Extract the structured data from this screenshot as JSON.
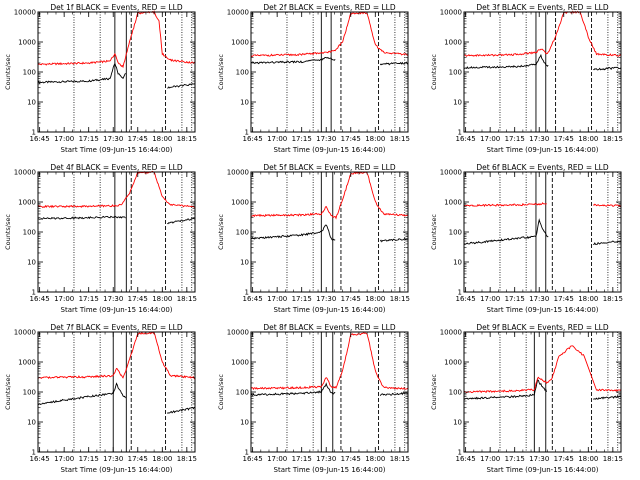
{
  "chart_data": [
    {
      "type": "line",
      "title": "Det 1f BLACK = Events, RED = LLD",
      "xlabel": "Start Time (09-Jun-15 16:44:00)",
      "ylabel": "Counts/sec",
      "scale_y": "log",
      "ylim": [
        1,
        10000
      ],
      "x_ticks": [
        "16:45",
        "17:00",
        "17:15",
        "17:30",
        "17:45",
        "18:00",
        "18:15"
      ],
      "y_ticks": [
        "1",
        "10",
        "100",
        "1000",
        "10000"
      ],
      "vlines": {
        "solid": [
          "17:31",
          "17:38"
        ],
        "dashed": [
          "17:41",
          "18:02"
        ],
        "dotted": [
          "17:06",
          "17:22",
          "18:12",
          "18:18"
        ]
      },
      "series": [
        {
          "color": "#000000",
          "x": [
            "16:44",
            "17:15",
            "17:28",
            "17:31",
            "17:33",
            "17:36",
            "17:38",
            "17:40",
            "18:02",
            "18:03",
            "18:20"
          ],
          "y": [
            45,
            50,
            60,
            200,
            90,
            60,
            110,
            0,
            0,
            30,
            40
          ]
        },
        {
          "color": "#ff0000",
          "x": [
            "16:44",
            "17:15",
            "17:28",
            "17:31",
            "17:33",
            "17:36",
            "17:40",
            "17:45",
            "17:55",
            "17:58",
            "18:00",
            "18:05",
            "18:20"
          ],
          "y": [
            180,
            200,
            230,
            400,
            200,
            150,
            1000,
            9000,
            10000,
            5000,
            400,
            250,
            200
          ]
        }
      ]
    },
    {
      "type": "line",
      "title": "Det 2f BLACK = Events, RED = LLD",
      "xlabel": "Start Time (09-Jun-15 16:44:00)",
      "ylabel": "Counts/sec",
      "scale_y": "log",
      "ylim": [
        1,
        10000
      ],
      "x_ticks": [
        "16:45",
        "17:00",
        "17:15",
        "17:30",
        "17:45",
        "18:00",
        "18:15"
      ],
      "y_ticks": [
        "1",
        "10",
        "100",
        "1000",
        "10000"
      ],
      "vlines": {
        "solid": [
          "17:27",
          "17:33"
        ],
        "dashed": [
          "17:39",
          "18:02"
        ],
        "dotted": [
          "17:06",
          "17:22",
          "18:12",
          "18:18"
        ]
      },
      "series": [
        {
          "color": "#000000",
          "x": [
            "16:44",
            "17:15",
            "17:27",
            "17:30",
            "17:33",
            "17:36",
            "17:40",
            "18:02",
            "18:03",
            "18:20"
          ],
          "y": [
            200,
            220,
            260,
            300,
            280,
            250,
            0,
            0,
            180,
            200
          ]
        },
        {
          "color": "#ff0000",
          "x": [
            "16:44",
            "17:15",
            "17:30",
            "17:35",
            "17:40",
            "17:45",
            "17:55",
            "18:00",
            "18:05",
            "18:20"
          ],
          "y": [
            350,
            380,
            450,
            500,
            1000,
            9000,
            9500,
            800,
            450,
            380
          ]
        }
      ]
    },
    {
      "type": "line",
      "title": "Det 3f BLACK = Events, RED = LLD",
      "xlabel": "Start Time (09-Jun-15 16:44:00)",
      "ylabel": "Counts/sec",
      "scale_y": "log",
      "ylim": [
        1,
        10000
      ],
      "x_ticks": [
        "16:45",
        "17:00",
        "17:15",
        "17:30",
        "17:45",
        "18:00",
        "18:15"
      ],
      "y_ticks": [
        "1",
        "10",
        "100",
        "1000",
        "10000"
      ],
      "vlines": {
        "solid": [
          "17:28",
          "17:34"
        ],
        "dashed": [
          "17:40",
          "18:02"
        ],
        "dotted": [
          "17:06",
          "17:22",
          "18:12",
          "18:18"
        ]
      },
      "series": [
        {
          "color": "#000000",
          "x": [
            "16:44",
            "17:15",
            "17:28",
            "17:31",
            "17:33",
            "17:36",
            "17:40",
            "18:02",
            "18:03",
            "18:20"
          ],
          "y": [
            140,
            150,
            180,
            350,
            200,
            150,
            0,
            0,
            120,
            140
          ]
        },
        {
          "color": "#ff0000",
          "x": [
            "16:44",
            "17:15",
            "17:28",
            "17:31",
            "17:35",
            "17:40",
            "17:45",
            "17:55",
            "18:00",
            "18:05",
            "18:20"
          ],
          "y": [
            350,
            380,
            450,
            600,
            400,
            1500,
            9500,
            10000,
            1500,
            400,
            350
          ]
        }
      ]
    },
    {
      "type": "line",
      "title": "Det 4f BLACK = Events, RED = LLD",
      "xlabel": "Start Time (09-Jun-15 16:44:00)",
      "ylabel": "Counts/sec",
      "scale_y": "log",
      "ylim": [
        1,
        10000
      ],
      "x_ticks": [
        "16:45",
        "17:00",
        "17:15",
        "17:30",
        "17:45",
        "18:00",
        "18:15"
      ],
      "y_ticks": [
        "1",
        "10",
        "100",
        "1000",
        "10000"
      ],
      "vlines": {
        "solid": [
          "17:31",
          "17:38"
        ],
        "dashed": [
          "17:41",
          "18:02"
        ],
        "dotted": [
          "17:06",
          "17:22",
          "18:12",
          "18:18"
        ]
      },
      "series": [
        {
          "color": "#000000",
          "x": [
            "16:44",
            "17:15",
            "17:31",
            "17:35",
            "17:38",
            "17:40",
            "18:02",
            "18:03",
            "18:20"
          ],
          "y": [
            280,
            300,
            320,
            310,
            300,
            0,
            0,
            200,
            280
          ]
        },
        {
          "color": "#ff0000",
          "x": [
            "16:44",
            "17:15",
            "17:30",
            "17:35",
            "17:40",
            "17:45",
            "17:55",
            "18:00",
            "18:05",
            "18:20"
          ],
          "y": [
            700,
            720,
            750,
            800,
            2000,
            9500,
            10000,
            1500,
            800,
            700
          ]
        }
      ]
    },
    {
      "type": "line",
      "title": "Det 5f BLACK = Events, RED = LLD",
      "xlabel": "Start Time (09-Jun-15 16:44:00)",
      "ylabel": "Counts/sec",
      "scale_y": "log",
      "ylim": [
        1,
        10000
      ],
      "x_ticks": [
        "16:45",
        "17:00",
        "17:15",
        "17:30",
        "17:45",
        "18:00",
        "18:15"
      ],
      "y_ticks": [
        "1",
        "10",
        "100",
        "1000",
        "10000"
      ],
      "vlines": {
        "solid": [
          "17:27",
          "17:34"
        ],
        "dashed": [
          "17:39",
          "18:02"
        ],
        "dotted": [
          "17:06",
          "17:22",
          "18:12",
          "18:18"
        ]
      },
      "series": [
        {
          "color": "#000000",
          "x": [
            "16:44",
            "17:15",
            "17:27",
            "17:30",
            "17:33",
            "17:36",
            "17:39",
            "18:02",
            "18:03",
            "18:20"
          ],
          "y": [
            60,
            80,
            100,
            180,
            60,
            50,
            0,
            0,
            50,
            60
          ]
        },
        {
          "color": "#ff0000",
          "x": [
            "16:44",
            "17:15",
            "17:27",
            "17:30",
            "17:33",
            "17:36",
            "17:40",
            "17:45",
            "17:55",
            "18:00",
            "18:05",
            "18:20"
          ],
          "y": [
            350,
            370,
            400,
            700,
            350,
            300,
            1200,
            9000,
            9500,
            1000,
            400,
            350
          ]
        }
      ]
    },
    {
      "type": "line",
      "title": "Det 6f BLACK = Events, RED = LLD",
      "xlabel": "Start Time (09-Jun-15 16:44:00)",
      "ylabel": "Counts/sec",
      "scale_y": "log",
      "ylim": [
        1,
        10000
      ],
      "x_ticks": [
        "16:45",
        "17:00",
        "17:15",
        "17:30",
        "17:45",
        "18:00",
        "18:15"
      ],
      "y_ticks": [
        "1",
        "10",
        "100",
        "1000",
        "10000"
      ],
      "vlines": {
        "solid": [
          "17:28",
          "17:34"
        ],
        "dashed": [
          "17:38",
          "18:02"
        ],
        "dotted": [
          "17:06",
          "17:22",
          "18:12",
          "18:18"
        ]
      },
      "series": [
        {
          "color": "#000000",
          "x": [
            "16:44",
            "17:15",
            "17:28",
            "17:30",
            "17:33",
            "17:36",
            "17:38",
            "18:02",
            "18:03",
            "18:20"
          ],
          "y": [
            40,
            60,
            70,
            250,
            100,
            60,
            0,
            0,
            40,
            50
          ]
        },
        {
          "color": "#ff0000",
          "x": [
            "16:44",
            "17:15",
            "17:30",
            "17:35",
            "17:38",
            "18:02",
            "18:03",
            "18:20"
          ],
          "y": [
            750,
            800,
            850,
            900,
            0,
            0,
            800,
            750
          ]
        }
      ]
    },
    {
      "type": "line",
      "title": "Det 7f BLACK = Events, RED = LLD",
      "xlabel": "Start Time (09-Jun-15 16:44:00)",
      "ylabel": "Counts/sec",
      "scale_y": "log",
      "ylim": [
        1,
        10000
      ],
      "x_ticks": [
        "16:45",
        "17:00",
        "17:15",
        "17:30",
        "17:45",
        "18:00",
        "18:15"
      ],
      "y_ticks": [
        "1",
        "10",
        "100",
        "1000",
        "10000"
      ],
      "vlines": {
        "solid": [
          "17:30",
          "17:38"
        ],
        "dashed": [
          "17:41",
          "18:02"
        ],
        "dotted": [
          "17:06",
          "17:22",
          "18:12",
          "18:18"
        ]
      },
      "series": [
        {
          "color": "#000000",
          "x": [
            "16:44",
            "17:15",
            "17:30",
            "17:32",
            "17:35",
            "17:38",
            "17:41",
            "18:02",
            "18:03",
            "18:20"
          ],
          "y": [
            40,
            70,
            90,
            180,
            90,
            60,
            0,
            0,
            20,
            30
          ]
        },
        {
          "color": "#ff0000",
          "x": [
            "16:44",
            "17:15",
            "17:30",
            "17:32",
            "17:36",
            "17:40",
            "17:45",
            "17:55",
            "18:00",
            "18:05",
            "18:20"
          ],
          "y": [
            300,
            320,
            350,
            600,
            300,
            1200,
            9000,
            9500,
            1000,
            350,
            300
          ]
        }
      ]
    },
    {
      "type": "line",
      "title": "Det 8f BLACK = Events, RED = LLD",
      "xlabel": "Start Time (09-Jun-15 16:44:00)",
      "ylabel": "Counts/sec",
      "scale_y": "log",
      "ylim": [
        1,
        10000
      ],
      "x_ticks": [
        "16:45",
        "17:00",
        "17:15",
        "17:30",
        "17:45",
        "18:00",
        "18:15"
      ],
      "y_ticks": [
        "1",
        "10",
        "100",
        "1000",
        "10000"
      ],
      "vlines": {
        "solid": [
          "17:27",
          "17:34"
        ],
        "dashed": [
          "17:39",
          "18:02"
        ],
        "dotted": [
          "17:06",
          "17:22",
          "18:12",
          "18:18"
        ]
      },
      "series": [
        {
          "color": "#000000",
          "x": [
            "16:44",
            "17:15",
            "17:27",
            "17:30",
            "17:33",
            "17:36",
            "17:39",
            "18:02",
            "18:03",
            "18:20"
          ],
          "y": [
            80,
            90,
            100,
            180,
            90,
            90,
            0,
            0,
            80,
            90
          ]
        },
        {
          "color": "#ff0000",
          "x": [
            "16:44",
            "17:15",
            "17:27",
            "17:30",
            "17:33",
            "17:36",
            "17:40",
            "17:45",
            "17:55",
            "18:00",
            "18:05",
            "18:20"
          ],
          "y": [
            130,
            140,
            150,
            300,
            150,
            140,
            500,
            8000,
            9000,
            500,
            140,
            130
          ]
        }
      ]
    },
    {
      "type": "line",
      "title": "Det 9f BLACK = Events, RED = LLD",
      "xlabel": "Start Time (09-Jun-15 16:44:00)",
      "ylabel": "Counts/sec",
      "scale_y": "log",
      "ylim": [
        1,
        10000
      ],
      "x_ticks": [
        "16:45",
        "17:00",
        "17:15",
        "17:30",
        "17:45",
        "18:00",
        "18:15"
      ],
      "y_ticks": [
        "1",
        "10",
        "100",
        "1000",
        "10000"
      ],
      "vlines": {
        "solid": [
          "17:27",
          "17:34"
        ],
        "dashed": [
          "17:38",
          "18:02"
        ],
        "dotted": [
          "17:06",
          "17:22",
          "18:12",
          "18:18"
        ]
      },
      "series": [
        {
          "color": "#000000",
          "x": [
            "16:44",
            "17:15",
            "17:27",
            "17:29",
            "17:32",
            "17:35",
            "17:38",
            "18:02",
            "18:03",
            "18:20"
          ],
          "y": [
            60,
            70,
            80,
            250,
            150,
            100,
            0,
            0,
            60,
            70
          ]
        },
        {
          "color": "#ff0000",
          "x": [
            "16:44",
            "17:15",
            "17:27",
            "17:29",
            "17:32",
            "17:35",
            "17:38",
            "17:42",
            "17:50",
            "17:58",
            "18:02",
            "18:05",
            "18:20"
          ],
          "y": [
            100,
            110,
            120,
            300,
            250,
            200,
            300,
            1500,
            3500,
            1500,
            0,
            120,
            110
          ]
        }
      ]
    }
  ]
}
